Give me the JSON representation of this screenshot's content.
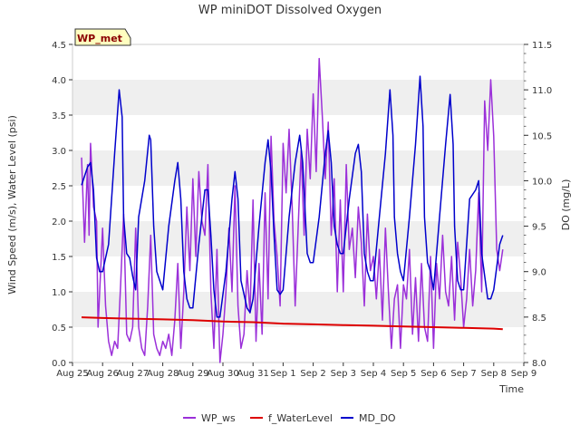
{
  "chart_data": {
    "type": "line",
    "title": "WP miniDOT Dissolved Oxygen",
    "xlabel": "Time",
    "ylabel_left": "Wind Speed (m/s), Water Level (psi)",
    "ylabel_right": "DO (mg/L)",
    "badge": "WP_met",
    "x_ticks": [
      "Aug 25",
      "Aug 26",
      "Aug 27",
      "Aug 28",
      "Aug 29",
      "Aug 30",
      "Aug 31",
      "Sep 1",
      "Sep 2",
      "Sep 3",
      "Sep 4",
      "Sep 5",
      "Sep 6",
      "Sep 7",
      "Sep 8",
      "Sep 9"
    ],
    "x_range_days": [
      0,
      15
    ],
    "ylim_left": [
      0,
      4.5
    ],
    "ylim_right": [
      8.0,
      11.5
    ],
    "left_ticks": [
      "0.0",
      "0.5",
      "1.0",
      "1.5",
      "2.0",
      "2.5",
      "3.0",
      "3.5",
      "4.0",
      "4.5"
    ],
    "right_ticks": [
      "8.0",
      "8.5",
      "9.0",
      "9.5",
      "10.0",
      "10.5",
      "11.0",
      "11.5"
    ],
    "grid": "horizontal bands",
    "legend_position": "bottom",
    "series": [
      {
        "name": "WP_ws",
        "axis": "left",
        "color": "#9b30d9",
        "points": [
          [
            0.3,
            2.9
          ],
          [
            0.4,
            1.7
          ],
          [
            0.5,
            2.8
          ],
          [
            0.55,
            1.8
          ],
          [
            0.6,
            3.1
          ],
          [
            0.7,
            2.2
          ],
          [
            0.8,
            2.0
          ],
          [
            0.85,
            0.5
          ],
          [
            1.0,
            1.9
          ],
          [
            1.1,
            0.8
          ],
          [
            1.2,
            0.3
          ],
          [
            1.3,
            0.1
          ],
          [
            1.4,
            0.3
          ],
          [
            1.5,
            0.2
          ],
          [
            1.6,
            1.1
          ],
          [
            1.7,
            2.1
          ],
          [
            1.8,
            0.4
          ],
          [
            1.9,
            0.3
          ],
          [
            2.0,
            0.5
          ],
          [
            2.1,
            1.9
          ],
          [
            2.2,
            0.5
          ],
          [
            2.3,
            0.2
          ],
          [
            2.4,
            0.1
          ],
          [
            2.5,
            0.8
          ],
          [
            2.6,
            1.8
          ],
          [
            2.7,
            0.4
          ],
          [
            2.8,
            0.2
          ],
          [
            2.9,
            0.1
          ],
          [
            3.0,
            0.3
          ],
          [
            3.1,
            0.2
          ],
          [
            3.2,
            0.4
          ],
          [
            3.3,
            0.1
          ],
          [
            3.4,
            0.6
          ],
          [
            3.5,
            1.4
          ],
          [
            3.6,
            0.2
          ],
          [
            3.7,
            1.0
          ],
          [
            3.8,
            2.2
          ],
          [
            3.9,
            1.3
          ],
          [
            4.0,
            2.6
          ],
          [
            4.1,
            1.5
          ],
          [
            4.2,
            2.7
          ],
          [
            4.3,
            2.0
          ],
          [
            4.4,
            1.8
          ],
          [
            4.5,
            2.8
          ],
          [
            4.6,
            1.0
          ],
          [
            4.7,
            0.2
          ],
          [
            4.8,
            1.6
          ],
          [
            4.9,
            0.0
          ],
          [
            5.0,
            0.4
          ],
          [
            5.1,
            1.0
          ],
          [
            5.2,
            1.9
          ],
          [
            5.3,
            1.0
          ],
          [
            5.4,
            2.5
          ],
          [
            5.5,
            0.8
          ],
          [
            5.6,
            0.2
          ],
          [
            5.7,
            0.4
          ],
          [
            5.8,
            1.3
          ],
          [
            5.9,
            0.7
          ],
          [
            6.0,
            2.3
          ],
          [
            6.1,
            0.3
          ],
          [
            6.2,
            1.4
          ],
          [
            6.3,
            0.4
          ],
          [
            6.4,
            2.4
          ],
          [
            6.5,
            0.9
          ],
          [
            6.6,
            3.2
          ],
          [
            6.7,
            2.0
          ],
          [
            6.8,
            1.5
          ],
          [
            6.9,
            0.8
          ],
          [
            7.0,
            3.1
          ],
          [
            7.1,
            2.4
          ],
          [
            7.2,
            3.3
          ],
          [
            7.3,
            2.2
          ],
          [
            7.4,
            0.8
          ],
          [
            7.5,
            1.9
          ],
          [
            7.6,
            3.0
          ],
          [
            7.7,
            1.8
          ],
          [
            7.8,
            3.3
          ],
          [
            7.9,
            2.6
          ],
          [
            8.0,
            3.8
          ],
          [
            8.1,
            2.7
          ],
          [
            8.2,
            4.3
          ],
          [
            8.3,
            3.5
          ],
          [
            8.4,
            2.6
          ],
          [
            8.5,
            3.4
          ],
          [
            8.6,
            1.8
          ],
          [
            8.7,
            2.6
          ],
          [
            8.8,
            1.0
          ],
          [
            8.9,
            2.3
          ],
          [
            9.0,
            1.0
          ],
          [
            9.1,
            2.8
          ],
          [
            9.2,
            1.6
          ],
          [
            9.3,
            1.9
          ],
          [
            9.4,
            1.2
          ],
          [
            9.5,
            2.2
          ],
          [
            9.6,
            1.7
          ],
          [
            9.7,
            0.8
          ],
          [
            9.8,
            2.1
          ],
          [
            9.9,
            1.3
          ],
          [
            10.0,
            1.5
          ],
          [
            10.1,
            0.9
          ],
          [
            10.2,
            1.6
          ],
          [
            10.3,
            0.6
          ],
          [
            10.4,
            1.9
          ],
          [
            10.5,
            1.0
          ],
          [
            10.6,
            0.2
          ],
          [
            10.7,
            0.9
          ],
          [
            10.8,
            1.1
          ],
          [
            10.9,
            0.2
          ],
          [
            11.0,
            1.1
          ],
          [
            11.1,
            0.9
          ],
          [
            11.2,
            1.6
          ],
          [
            11.3,
            0.4
          ],
          [
            11.4,
            1.2
          ],
          [
            11.5,
            0.3
          ],
          [
            11.6,
            1.4
          ],
          [
            11.7,
            0.5
          ],
          [
            11.8,
            0.3
          ],
          [
            11.9,
            1.5
          ],
          [
            12.0,
            0.2
          ],
          [
            12.1,
            1.4
          ],
          [
            12.2,
            0.9
          ],
          [
            12.3,
            1.8
          ],
          [
            12.4,
            1.0
          ],
          [
            12.5,
            0.8
          ],
          [
            12.6,
            1.5
          ],
          [
            12.7,
            0.6
          ],
          [
            12.8,
            1.7
          ],
          [
            12.9,
            1.2
          ],
          [
            13.0,
            0.5
          ],
          [
            13.1,
            0.9
          ],
          [
            13.2,
            1.6
          ],
          [
            13.3,
            0.8
          ],
          [
            13.4,
            1.3
          ],
          [
            13.5,
            2.4
          ],
          [
            13.6,
            1.0
          ],
          [
            13.7,
            3.7
          ],
          [
            13.8,
            3.0
          ],
          [
            13.9,
            4.0
          ],
          [
            14.0,
            3.2
          ],
          [
            14.1,
            1.6
          ],
          [
            14.2,
            1.3
          ],
          [
            14.3,
            1.6
          ]
        ]
      },
      {
        "name": "f_WaterLevel",
        "axis": "left",
        "color": "#dd0000",
        "points": [
          [
            0.3,
            0.64
          ],
          [
            1.0,
            0.63
          ],
          [
            2.0,
            0.62
          ],
          [
            3.0,
            0.61
          ],
          [
            4.0,
            0.6
          ],
          [
            5.0,
            0.58
          ],
          [
            6.0,
            0.57
          ],
          [
            7.0,
            0.55
          ],
          [
            8.0,
            0.54
          ],
          [
            9.0,
            0.53
          ],
          [
            10.0,
            0.52
          ],
          [
            11.0,
            0.51
          ],
          [
            12.0,
            0.5
          ],
          [
            13.0,
            0.49
          ],
          [
            14.0,
            0.48
          ],
          [
            14.3,
            0.47
          ]
        ]
      },
      {
        "name": "MD_DO",
        "axis": "right",
        "color": "#0000cc",
        "points": [
          [
            0.3,
            9.95
          ],
          [
            0.5,
            10.15
          ],
          [
            0.6,
            10.2
          ],
          [
            0.7,
            9.9
          ],
          [
            0.8,
            9.15
          ],
          [
            0.9,
            9.0
          ],
          [
            1.0,
            9.0
          ],
          [
            1.2,
            9.3
          ],
          [
            1.4,
            10.3
          ],
          [
            1.55,
            11.0
          ],
          [
            1.65,
            10.7
          ],
          [
            1.7,
            9.6
          ],
          [
            1.8,
            9.2
          ],
          [
            1.9,
            9.15
          ],
          [
            2.0,
            8.95
          ],
          [
            2.1,
            8.8
          ],
          [
            2.2,
            9.6
          ],
          [
            2.4,
            10.0
          ],
          [
            2.55,
            10.5
          ],
          [
            2.6,
            10.45
          ],
          [
            2.7,
            9.5
          ],
          [
            2.8,
            9.0
          ],
          [
            2.9,
            8.9
          ],
          [
            3.0,
            8.8
          ],
          [
            3.2,
            9.5
          ],
          [
            3.4,
            10.0
          ],
          [
            3.5,
            10.2
          ],
          [
            3.6,
            9.8
          ],
          [
            3.7,
            9.0
          ],
          [
            3.8,
            8.7
          ],
          [
            3.9,
            8.6
          ],
          [
            4.0,
            8.6
          ],
          [
            4.2,
            9.3
          ],
          [
            4.4,
            9.9
          ],
          [
            4.5,
            9.9
          ],
          [
            4.6,
            9.4
          ],
          [
            4.7,
            8.8
          ],
          [
            4.8,
            8.5
          ],
          [
            4.9,
            8.5
          ],
          [
            5.1,
            9.0
          ],
          [
            5.3,
            9.8
          ],
          [
            5.4,
            10.1
          ],
          [
            5.5,
            9.8
          ],
          [
            5.6,
            8.9
          ],
          [
            5.8,
            8.6
          ],
          [
            5.9,
            8.55
          ],
          [
            6.0,
            8.7
          ],
          [
            6.2,
            9.5
          ],
          [
            6.4,
            10.2
          ],
          [
            6.5,
            10.45
          ],
          [
            6.6,
            10.1
          ],
          [
            6.7,
            9.4
          ],
          [
            6.8,
            8.8
          ],
          [
            6.9,
            8.75
          ],
          [
            7.0,
            8.8
          ],
          [
            7.2,
            9.6
          ],
          [
            7.4,
            10.2
          ],
          [
            7.55,
            10.5
          ],
          [
            7.65,
            10.2
          ],
          [
            7.8,
            9.2
          ],
          [
            7.9,
            9.1
          ],
          [
            8.0,
            9.1
          ],
          [
            8.2,
            9.6
          ],
          [
            8.4,
            10.3
          ],
          [
            8.5,
            10.55
          ],
          [
            8.6,
            10.2
          ],
          [
            8.7,
            9.5
          ],
          [
            8.8,
            9.3
          ],
          [
            8.9,
            9.2
          ],
          [
            9.0,
            9.2
          ],
          [
            9.2,
            9.8
          ],
          [
            9.4,
            10.3
          ],
          [
            9.5,
            10.4
          ],
          [
            9.6,
            10.1
          ],
          [
            9.7,
            9.2
          ],
          [
            9.8,
            9.0
          ],
          [
            9.9,
            8.9
          ],
          [
            10.0,
            8.9
          ],
          [
            10.2,
            9.6
          ],
          [
            10.4,
            10.3
          ],
          [
            10.55,
            11.0
          ],
          [
            10.65,
            10.5
          ],
          [
            10.7,
            9.6
          ],
          [
            10.8,
            9.2
          ],
          [
            10.9,
            9.0
          ],
          [
            11.0,
            8.9
          ],
          [
            11.2,
            9.6
          ],
          [
            11.4,
            10.4
          ],
          [
            11.55,
            11.15
          ],
          [
            11.65,
            10.6
          ],
          [
            11.7,
            9.6
          ],
          [
            11.8,
            9.1
          ],
          [
            11.9,
            9.0
          ],
          [
            12.0,
            8.8
          ],
          [
            12.2,
            9.6
          ],
          [
            12.4,
            10.4
          ],
          [
            12.55,
            10.95
          ],
          [
            12.65,
            10.4
          ],
          [
            12.7,
            9.5
          ],
          [
            12.8,
            8.9
          ],
          [
            12.9,
            8.8
          ],
          [
            13.0,
            8.8
          ],
          [
            13.2,
            9.8
          ],
          [
            13.4,
            9.9
          ],
          [
            13.5,
            10.0
          ],
          [
            13.6,
            9.2
          ],
          [
            13.8,
            8.7
          ],
          [
            13.9,
            8.7
          ],
          [
            14.0,
            8.8
          ],
          [
            14.2,
            9.3
          ],
          [
            14.3,
            9.4
          ]
        ]
      }
    ]
  }
}
